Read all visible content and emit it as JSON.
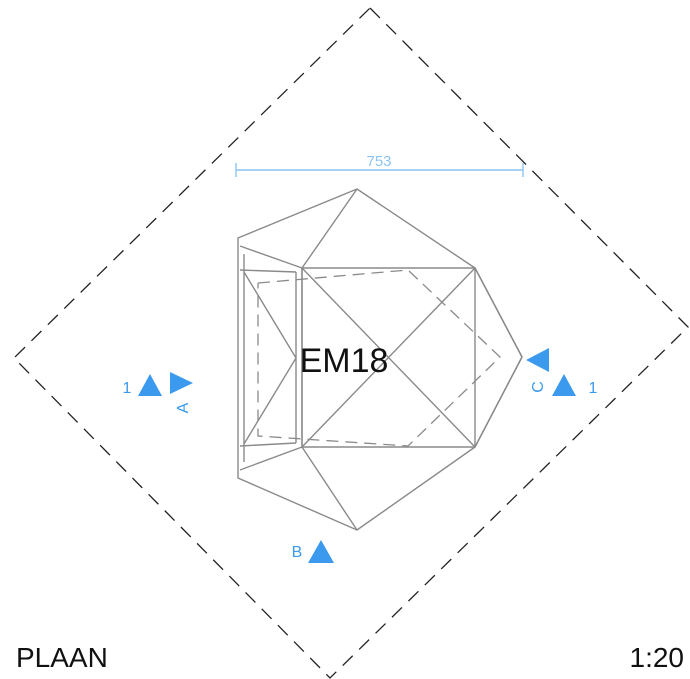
{
  "drawing": {
    "element_tag": "EM18",
    "dimension_value": "753",
    "view_title": "PLAAN",
    "scale": "1:20"
  },
  "section_markers": {
    "left_number": "1",
    "left_letter": "A",
    "right_number": "1",
    "right_letter": "C",
    "bottom_letter": "B"
  },
  "colors": {
    "lines": "#8a8a8a",
    "boundary": "#222222",
    "markers": "#3b9aed",
    "dimension": "#8cc4f2",
    "text": "#111111"
  }
}
